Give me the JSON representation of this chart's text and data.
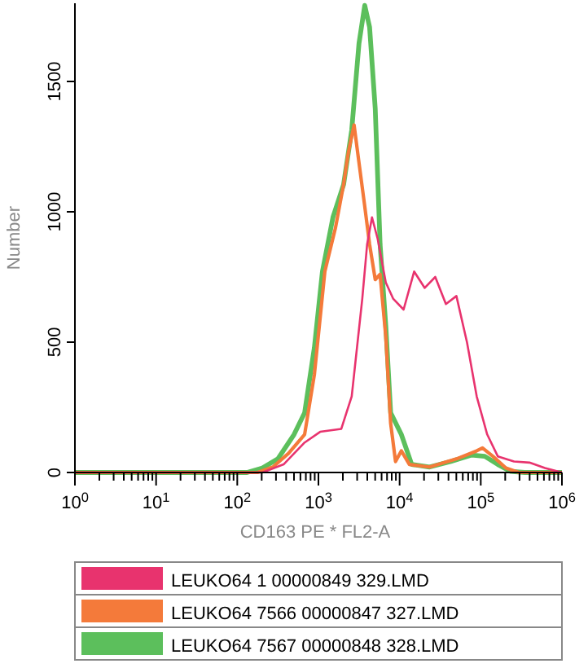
{
  "chart_data": {
    "type": "line",
    "xlabel": "CD163 PE * FL2-A",
    "ylabel": "Number",
    "log": "x",
    "xlim": [
      1,
      1000000
    ],
    "ylim": [
      0,
      1800
    ],
    "xticks": [
      {
        "value": 1,
        "label": "10$^{0}$"
      },
      {
        "value": 10,
        "label": "10$^{1}$"
      },
      {
        "value": 100,
        "label": "10$^{2}$"
      },
      {
        "value": 1000,
        "label": "10$^{3}$"
      },
      {
        "value": 10000,
        "label": "10$^{4}$"
      },
      {
        "value": 100000,
        "label": "10$^{5}$"
      },
      {
        "value": 1000000,
        "label": "10$^{6}$"
      },
      {
        "value": 2,
        "label": null
      },
      {
        "value": 3,
        "label": null
      },
      {
        "value": 4,
        "label": null
      },
      {
        "value": 5,
        "label": null
      },
      {
        "value": 6,
        "label": null
      },
      {
        "value": 7,
        "label": null
      },
      {
        "value": 8,
        "label": null
      },
      {
        "value": 9,
        "label": null
      },
      {
        "value": 20,
        "label": null
      },
      {
        "value": 30,
        "label": null
      },
      {
        "value": 40,
        "label": null
      },
      {
        "value": 50,
        "label": null
      },
      {
        "value": 60,
        "label": null
      },
      {
        "value": 70,
        "label": null
      },
      {
        "value": 80,
        "label": null
      },
      {
        "value": 90,
        "label": null
      },
      {
        "value": 200,
        "label": null
      },
      {
        "value": 300,
        "label": null
      },
      {
        "value": 400,
        "label": null
      },
      {
        "value": 500,
        "label": null
      },
      {
        "value": 600,
        "label": null
      },
      {
        "value": 700,
        "label": null
      },
      {
        "value": 800,
        "label": null
      },
      {
        "value": 900,
        "label": null
      },
      {
        "value": 2000,
        "label": null
      },
      {
        "value": 3000,
        "label": null
      },
      {
        "value": 4000,
        "label": null
      },
      {
        "value": 5000,
        "label": null
      },
      {
        "value": 6000,
        "label": null
      },
      {
        "value": 7000,
        "label": null
      },
      {
        "value": 8000,
        "label": null
      },
      {
        "value": 9000,
        "label": null
      },
      {
        "value": 20000,
        "label": null
      },
      {
        "value": 30000,
        "label": null
      },
      {
        "value": 40000,
        "label": null
      },
      {
        "value": 50000,
        "label": null
      },
      {
        "value": 60000,
        "label": null
      },
      {
        "value": 70000,
        "label": null
      },
      {
        "value": 80000,
        "label": null
      },
      {
        "value": 90000,
        "label": null
      },
      {
        "value": 200000,
        "label": null
      },
      {
        "value": 300000,
        "label": null
      },
      {
        "value": 400000,
        "label": null
      },
      {
        "value": 500000,
        "label": null
      },
      {
        "value": 600000,
        "label": null
      },
      {
        "value": 700000,
        "label": null
      },
      {
        "value": 800000,
        "label": null
      },
      {
        "value": 900000,
        "label": null
      }
    ],
    "yticks": [
      0,
      500,
      1000,
      1500
    ],
    "grid": false,
    "legend": "bottom",
    "marker": "none",
    "line_style": "solid",
    "series": [
      {
        "name": "LEUKO64 1 00000849 329.LMD",
        "color": "#e8336e",
        "x": [
          1,
          204,
          372,
          676,
          1050,
          1910,
          2570,
          3470,
          3980,
          4570,
          5370,
          6760,
          8320,
          11200,
          15100,
          20400,
          27500,
          37200,
          50100,
          67600,
          89100,
          120000,
          162000,
          257000,
          398000,
          617000,
          1000000
        ],
        "values": [
          0,
          0,
          31,
          115,
          156,
          167,
          292,
          667,
          875,
          979,
          896,
          729,
          667,
          625,
          771,
          708,
          750,
          646,
          677,
          500,
          292,
          146,
          62,
          42,
          38,
          17,
          0
        ]
      },
      {
        "name": "LEUKO64 7566 00000847 327.LMD",
        "color": "#f47a3a",
        "x": [
          1,
          178,
          275,
          427,
          676,
          891,
          1200,
          1620,
          2040,
          2340,
          2750,
          3160,
          3720,
          4270,
          5010,
          5750,
          6760,
          7760,
          8910,
          10500,
          13200,
          23400,
          50100,
          89100,
          105000,
          141000,
          204000,
          295000,
          1000000
        ],
        "values": [
          0,
          0,
          21,
          73,
          146,
          375,
          771,
          938,
          1104,
          1229,
          1333,
          1188,
          1021,
          875,
          740,
          760,
          521,
          188,
          42,
          83,
          31,
          21,
          52,
          83,
          94,
          62,
          17,
          0,
          0
        ]
      },
      {
        "name": "LEUKO64 7567 00000848 328.LMD",
        "color": "#5cbf5c",
        "x": [
          1,
          132,
          204,
          316,
          501,
          676,
          891,
          1120,
          1510,
          2040,
          2570,
          3160,
          3720,
          4270,
          5010,
          5750,
          6760,
          7760,
          10500,
          14100,
          23400,
          42700,
          77600,
          112000,
          162000,
          234000,
          347000,
          1000000
        ],
        "values": [
          0,
          0,
          17,
          52,
          146,
          229,
          479,
          771,
          979,
          1104,
          1313,
          1646,
          1792,
          1708,
          1396,
          875,
          562,
          229,
          146,
          31,
          21,
          42,
          67,
          62,
          31,
          4,
          0,
          0
        ]
      }
    ]
  }
}
